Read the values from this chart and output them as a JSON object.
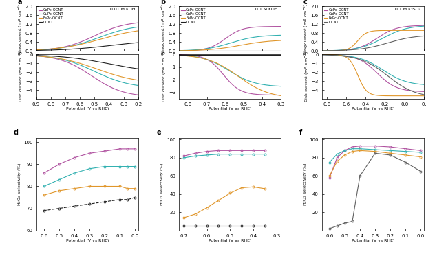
{
  "colors": {
    "CoPc-OCNT": "#b052a0",
    "CuPc-OCNT": "#30b0b0",
    "FePc-OCNT": "#e0962a",
    "OCNT": "#606060"
  },
  "colors_abc_ocnt": "#202020",
  "panel_a": {
    "label": "a",
    "electrolyte": "0.01 M KOH",
    "xlim": [
      0.9,
      0.2
    ],
    "ring_ylim": [
      0.0,
      2.0
    ],
    "disk_ylim": [
      -5.0,
      0.0
    ],
    "ring_yticks": [
      0.0,
      0.4,
      0.8,
      1.2,
      1.6,
      2.0
    ],
    "disk_yticks": [
      -4,
      -3,
      -2,
      -1,
      0
    ],
    "xticks": [
      0.9,
      0.8,
      0.7,
      0.6,
      0.5,
      0.4,
      0.3,
      0.2
    ]
  },
  "panel_b": {
    "label": "b",
    "electrolyte": "0.1 M KOH",
    "xlim": [
      0.85,
      0.3
    ],
    "ring_ylim": [
      0.0,
      2.0
    ],
    "disk_ylim": [
      -3.5,
      0.0
    ],
    "ring_yticks": [
      0.0,
      0.4,
      0.8,
      1.2,
      1.6,
      2.0
    ],
    "disk_yticks": [
      -3,
      -2,
      -1,
      0
    ],
    "xticks": [
      0.8,
      0.7,
      0.6,
      0.5,
      0.4,
      0.3
    ]
  },
  "panel_c": {
    "label": "c",
    "electrolyte": "0.1 M K₂SO₄",
    "xlim": [
      0.85,
      -0.2
    ],
    "ring_ylim": [
      0.0,
      2.0
    ],
    "disk_ylim": [
      -5.0,
      0.0
    ],
    "ring_yticks": [
      0.0,
      0.4,
      0.8,
      1.2,
      1.6,
      2.0
    ],
    "disk_yticks": [
      -4,
      -3,
      -2,
      -1,
      0
    ],
    "xticks": [
      0.8,
      0.6,
      0.4,
      0.2,
      0.0,
      -0.2
    ]
  },
  "panel_d": {
    "label": "d",
    "xlim": [
      0.65,
      -0.02
    ],
    "ylim": [
      60,
      102
    ],
    "yticks": [
      60,
      70,
      80,
      90,
      100
    ],
    "xticks": [
      0.6,
      0.5,
      0.4,
      0.3,
      0.2,
      0.1,
      0.0
    ]
  },
  "panel_e": {
    "label": "e",
    "xlim": [
      0.72,
      0.28
    ],
    "ylim": [
      0,
      102
    ],
    "yticks": [
      20,
      40,
      60,
      80,
      100
    ],
    "xticks": [
      0.7,
      0.6,
      0.5,
      0.4,
      0.3
    ]
  },
  "panel_f": {
    "label": "f",
    "xlim": [
      0.65,
      -0.02
    ],
    "ylim": [
      0,
      102
    ],
    "yticks": [
      20,
      40,
      60,
      80,
      100
    ],
    "xticks": [
      0.6,
      0.4,
      0.2,
      0.0
    ]
  }
}
